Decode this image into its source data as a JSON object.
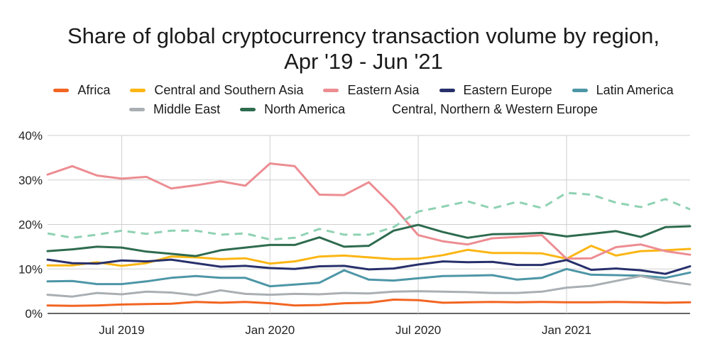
{
  "chart_data": {
    "type": "line",
    "title_line1": "Share of global cryptocurrency transaction volume by region,",
    "title_line2": "Apr '19 - Jun '21",
    "xlabel": "",
    "ylabel": "",
    "ylim": [
      0,
      40
    ],
    "y_ticks": [
      "0%",
      "10%",
      "20%",
      "30%",
      "40%"
    ],
    "x": [
      "2019-04",
      "2019-05",
      "2019-06",
      "2019-07",
      "2019-08",
      "2019-09",
      "2019-10",
      "2019-11",
      "2019-12",
      "2020-01",
      "2020-02",
      "2020-03",
      "2020-04",
      "2020-05",
      "2020-06",
      "2020-07",
      "2020-08",
      "2020-09",
      "2020-10",
      "2020-11",
      "2020-12",
      "2021-01",
      "2021-02",
      "2021-03",
      "2021-04",
      "2021-05",
      "2021-06"
    ],
    "x_tick_labels": [
      {
        "x": "2019-07",
        "label": "Jul 2019"
      },
      {
        "x": "2020-01",
        "label": "Jan 2020"
      },
      {
        "x": "2020-07",
        "label": "Jul 2020"
      },
      {
        "x": "2021-01",
        "label": "Jan 2021"
      }
    ],
    "grid": true,
    "legend_position": "top",
    "series": [
      {
        "name": "Africa",
        "color": "#f26522",
        "dashed": false,
        "values": [
          1.8,
          1.7,
          1.8,
          2.0,
          2.1,
          2.2,
          2.6,
          2.4,
          2.6,
          2.3,
          1.8,
          1.9,
          2.3,
          2.4,
          3.1,
          3.0,
          2.4,
          2.5,
          2.6,
          2.5,
          2.6,
          2.5,
          2.5,
          2.6,
          2.5,
          2.4,
          2.5
        ]
      },
      {
        "name": "Central and Southern Asia",
        "color": "#fbb614",
        "dashed": false,
        "values": [
          10.8,
          10.8,
          11.5,
          10.7,
          11.3,
          12.8,
          12.6,
          12.2,
          12.4,
          11.2,
          11.7,
          12.8,
          13.0,
          12.6,
          12.2,
          12.3,
          13.1,
          14.3,
          13.6,
          13.6,
          13.5,
          12.3,
          15.2,
          13.0,
          14.0,
          14.2,
          14.5
        ]
      },
      {
        "name": "Eastern Asia",
        "color": "#ec8d92",
        "dashed": false,
        "values": [
          31.2,
          33.1,
          31.0,
          30.3,
          30.7,
          28.1,
          28.8,
          29.7,
          28.7,
          33.7,
          33.1,
          26.7,
          26.6,
          29.5,
          24.0,
          17.6,
          16.2,
          15.5,
          16.9,
          17.2,
          17.6,
          12.3,
          12.4,
          14.9,
          15.5,
          14.0,
          13.2
        ]
      },
      {
        "name": "Eastern Europe",
        "color": "#27306b",
        "dashed": false,
        "values": [
          12.1,
          11.3,
          11.2,
          11.9,
          11.7,
          12.1,
          11.3,
          10.5,
          10.7,
          10.2,
          10.0,
          10.6,
          10.7,
          9.9,
          10.1,
          11.0,
          11.7,
          11.5,
          11.6,
          10.9,
          10.9,
          12.0,
          9.8,
          10.1,
          9.7,
          8.9,
          10.6
        ]
      },
      {
        "name": "Latin America",
        "color": "#4d96a6",
        "dashed": false,
        "values": [
          7.2,
          7.3,
          6.6,
          6.6,
          7.2,
          8.0,
          8.4,
          8.0,
          8.0,
          6.1,
          6.5,
          6.9,
          9.7,
          7.6,
          7.4,
          7.9,
          8.4,
          8.5,
          8.6,
          7.6,
          8.0,
          10.0,
          8.7,
          8.6,
          8.5,
          8.0,
          9.2
        ]
      },
      {
        "name": "Middle East",
        "color": "#a9afb3",
        "dashed": false,
        "values": [
          4.2,
          3.8,
          4.6,
          4.3,
          4.9,
          4.7,
          4.1,
          5.2,
          4.4,
          4.2,
          4.4,
          4.3,
          4.6,
          4.5,
          4.9,
          5.0,
          4.9,
          4.8,
          4.6,
          4.6,
          4.9,
          5.8,
          6.2,
          7.3,
          8.4,
          7.3,
          6.5
        ]
      },
      {
        "name": "North America",
        "color": "#2e6b4f",
        "dashed": false,
        "values": [
          14.0,
          14.4,
          15.0,
          14.8,
          13.9,
          13.4,
          12.9,
          14.2,
          14.8,
          15.4,
          15.4,
          17.1,
          15.0,
          15.2,
          18.6,
          19.9,
          18.3,
          17.0,
          17.8,
          17.9,
          18.1,
          17.3,
          17.9,
          18.5,
          17.2,
          19.4,
          19.6
        ]
      },
      {
        "name": "Central, Northern & Western Europe",
        "color": "#8fd2b3",
        "dashed": true,
        "values": [
          18.0,
          17.0,
          17.7,
          18.6,
          17.9,
          18.6,
          18.6,
          17.7,
          18.0,
          16.6,
          17.0,
          19.0,
          17.7,
          17.7,
          19.4,
          22.9,
          24.0,
          25.2,
          23.6,
          25.1,
          23.7,
          27.1,
          26.7,
          24.9,
          23.9,
          25.7,
          23.4
        ]
      }
    ]
  }
}
